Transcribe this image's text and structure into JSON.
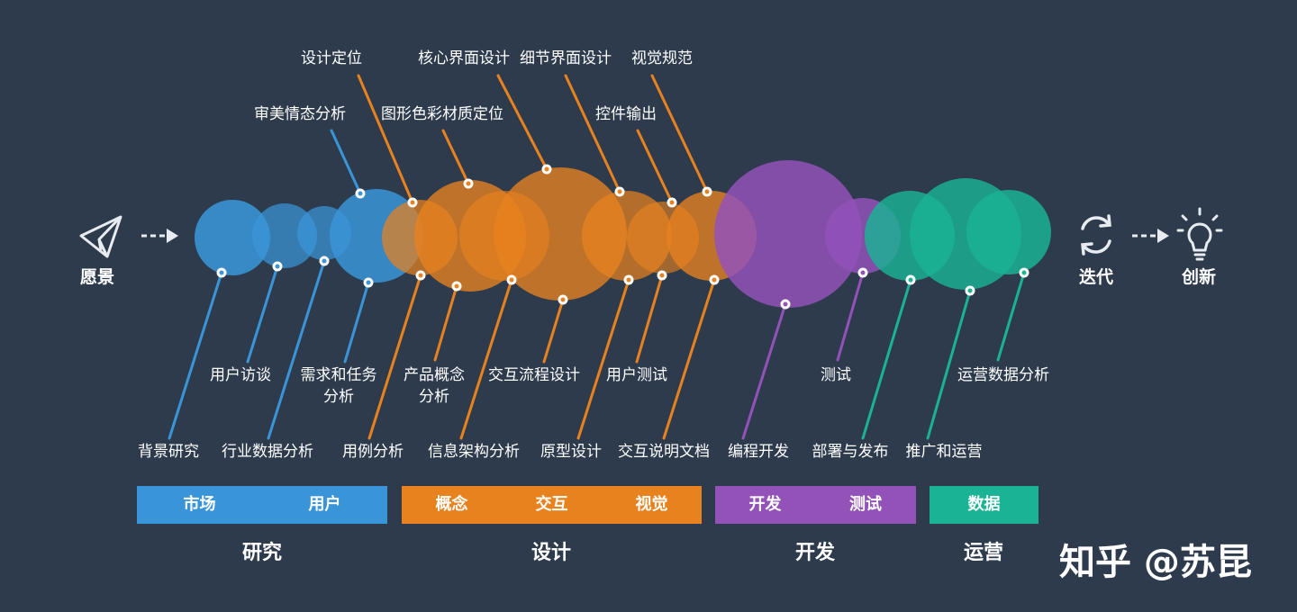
{
  "flow": {
    "vision": "愿景",
    "iterate": "迭代",
    "innovate": "创新"
  },
  "top_labels": {
    "t1": "设计定位",
    "t2": "核心界面设计",
    "t3": "细节界面设计",
    "t4": "视觉规范",
    "t5": "审美情态分析",
    "t6": "图形色彩材质定位",
    "t7": "控件输出"
  },
  "mid_labels": {
    "m1": "用户访谈",
    "m2a": "需求和任务",
    "m2b": "分析",
    "m3a": "产品概念",
    "m3b": "分析",
    "m4": "交互流程设计",
    "m5": "用户测试",
    "m6": "测试",
    "m7": "运营数据分析"
  },
  "bottom_labels": {
    "b1": "背景研究",
    "b2": "行业数据分析",
    "b3": "用例分析",
    "b4": "信息架构分析",
    "b5": "原型设计",
    "b6": "交互说明文档",
    "b7": "编程开发",
    "b8": "部署与发布",
    "b9": "推广和运营"
  },
  "bars": {
    "research": [
      "市场",
      "用户"
    ],
    "design": [
      "概念",
      "交互",
      "视觉"
    ],
    "dev": [
      "开发",
      "测试"
    ],
    "ops": [
      "数据"
    ]
  },
  "phases": {
    "research": "研究",
    "design": "设计",
    "dev": "开发",
    "ops": "运营"
  },
  "watermark": "知乎 @苏昆",
  "colors": {
    "background": "#2d3b4d",
    "research": "#3a95d8",
    "design": "#e8821f",
    "dev": "#9352b8",
    "ops": "#1ab395"
  },
  "icons": {
    "vision": "paper-plane-icon",
    "iterate": "refresh-icon",
    "innovate": "lightbulb-icon"
  }
}
